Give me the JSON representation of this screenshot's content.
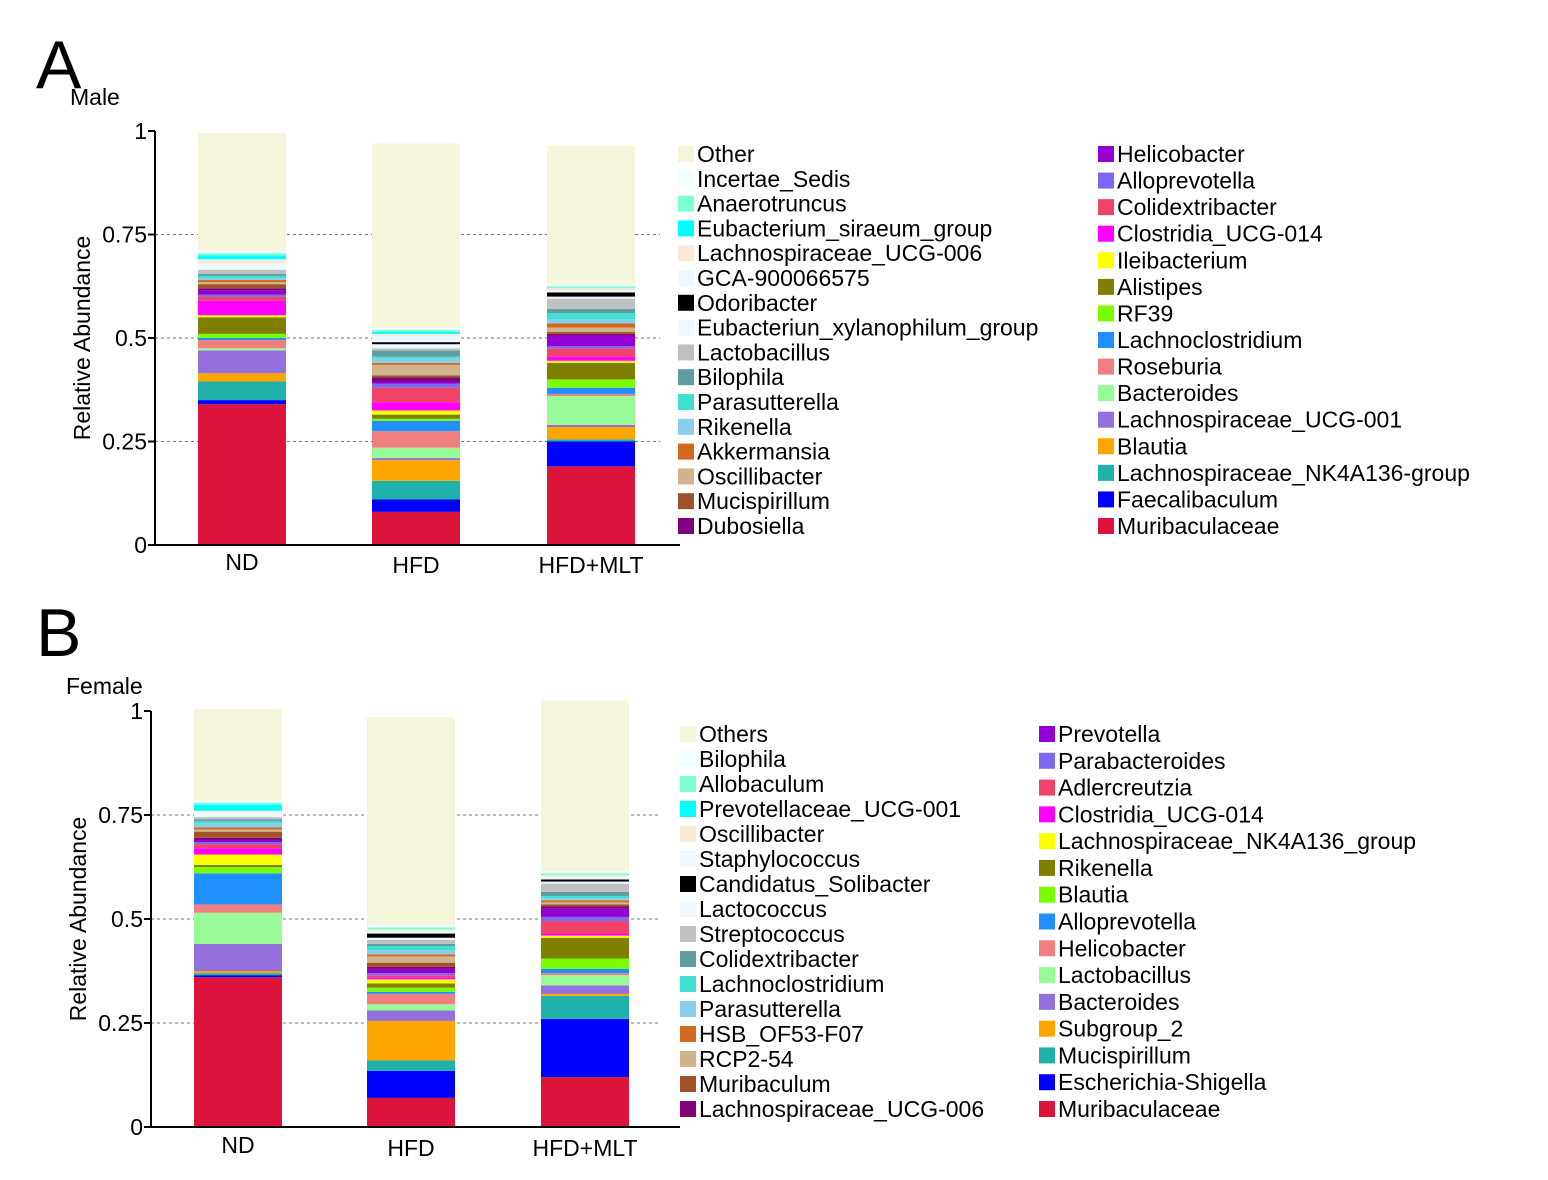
{
  "chart_data": [
    {
      "type": "bar",
      "stacked": true,
      "panel_label": "A",
      "title": "Male",
      "ylabel": "Relative Abundance",
      "xlabel": "",
      "ylim": [
        0,
        1
      ],
      "yticks": [
        0,
        0.25,
        0.5,
        0.75,
        1
      ],
      "ytick_labels": [
        "0",
        "0.25",
        "0.5",
        "0.75",
        "1"
      ],
      "categories": [
        "ND",
        "HFD",
        "HFD+MLT"
      ],
      "series": [
        {
          "name": "Muribaculaceae",
          "color": "#dc143c",
          "values": [
            0.34,
            0.08,
            0.19
          ]
        },
        {
          "name": "Faecalibaculum",
          "color": "#0000ff",
          "values": [
            0.01,
            0.03,
            0.06
          ]
        },
        {
          "name": "Lachnospiraceae_NK4A136-group",
          "color": "#20b2aa",
          "values": [
            0.045,
            0.045,
            0.005
          ]
        },
        {
          "name": "Blautia",
          "color": "#ffa500",
          "values": [
            0.02,
            0.05,
            0.03
          ]
        },
        {
          "name": "Lachnospiraceae_UCG-001",
          "color": "#9370db",
          "values": [
            0.055,
            0.005,
            0.005
          ]
        },
        {
          "name": "Bacteroides",
          "color": "#98fb98",
          "values": [
            0.005,
            0.025,
            0.07
          ]
        },
        {
          "name": "Roseburia",
          "color": "#f08080",
          "values": [
            0.02,
            0.04,
            0.005
          ]
        },
        {
          "name": "Lachnoclostridium",
          "color": "#1e90ff",
          "values": [
            0.005,
            0.025,
            0.015
          ]
        },
        {
          "name": "RF39",
          "color": "#7cfc00",
          "values": [
            0.01,
            0.005,
            0.02
          ]
        },
        {
          "name": "Alistipes",
          "color": "#808000",
          "values": [
            0.04,
            0.01,
            0.04
          ]
        },
        {
          "name": "Ileibacterium",
          "color": "#ffff00",
          "values": [
            0.005,
            0.01,
            0.005
          ]
        },
        {
          "name": "Clostridia_UCG-014",
          "color": "#ff00ff",
          "values": [
            0.035,
            0.02,
            0.01
          ]
        },
        {
          "name": "Colidextribacter",
          "color": "#f0436a",
          "values": [
            0.01,
            0.035,
            0.02
          ]
        },
        {
          "name": "Alloprevotella",
          "color": "#7b68ee",
          "values": [
            0.005,
            0.01,
            0.005
          ]
        },
        {
          "name": "Helicobacter",
          "color": "#9400d3",
          "values": [
            0.01,
            0.005,
            0.025
          ]
        },
        {
          "name": "Dubosiella",
          "color": "#800080",
          "values": [
            0.005,
            0.01,
            0.005
          ]
        },
        {
          "name": "Mucispirillum",
          "color": "#a0522d",
          "values": [
            0.01,
            0.005,
            0.005
          ]
        },
        {
          "name": "Oscillibacter",
          "color": "#d2b48c",
          "values": [
            0.005,
            0.025,
            0.01
          ]
        },
        {
          "name": "Akkermansia",
          "color": "#d2691e",
          "values": [
            0.005,
            0.005,
            0.01
          ]
        },
        {
          "name": "Rikenella",
          "color": "#87ceeb",
          "values": [
            0.005,
            0.01,
            0.01
          ]
        },
        {
          "name": "Parasutterella",
          "color": "#40e0d0",
          "values": [
            0.005,
            0.005,
            0.015
          ]
        },
        {
          "name": "Bilophila",
          "color": "#5f9ea0",
          "values": [
            0.005,
            0.015,
            0.01
          ]
        },
        {
          "name": "Lactobacillus",
          "color": "#c0c0c0",
          "values": [
            0.01,
            0.005,
            0.025
          ]
        },
        {
          "name": "Eubacteriun_xylanophilum_group",
          "color": "#f0f8ff",
          "values": [
            0.005,
            0.01,
            0.005
          ]
        },
        {
          "name": "Odoribacter",
          "color": "#000000",
          "values": [
            0.0,
            0.005,
            0.01
          ]
        },
        {
          "name": "GCA-900066575",
          "color": "#f0f8ff",
          "values": [
            0.01,
            0.015,
            0.005
          ]
        },
        {
          "name": "Lachnospiraceae_UCG-006",
          "color": "#faebd7",
          "values": [
            0.01,
            0.005,
            0.005
          ]
        },
        {
          "name": "Eubacterium_siraeum_group",
          "color": "#00ffff",
          "values": [
            0.01,
            0.005,
            0.0
          ]
        },
        {
          "name": "Anaerotruncus",
          "color": "#7fffd4",
          "values": [
            0.005,
            0.005,
            0.005
          ]
        },
        {
          "name": "Incertae_Sedis",
          "color": "#f0ffff",
          "values": [
            0.005,
            0.005,
            0.005
          ]
        },
        {
          "name": "Other",
          "color": "#f5f5dc",
          "values": [
            0.285,
            0.445,
            0.335
          ]
        }
      ]
    },
    {
      "type": "bar",
      "stacked": true,
      "panel_label": "B",
      "title": "Female",
      "ylabel": "Relative Abundance",
      "xlabel": "",
      "ylim": [
        0,
        1
      ],
      "yticks": [
        0,
        0.25,
        0.5,
        0.75,
        1
      ],
      "ytick_labels": [
        "0",
        "0.25",
        "0.5",
        "0.75",
        "1"
      ],
      "categories": [
        "ND",
        "HFD",
        "HFD+MLT"
      ],
      "series": [
        {
          "name": "Muribaculaceae",
          "color": "#dc143c",
          "values": [
            0.36,
            0.07,
            0.12
          ]
        },
        {
          "name": "Escherichia-Shigella",
          "color": "#0000ff",
          "values": [
            0.005,
            0.065,
            0.14
          ]
        },
        {
          "name": "Mucispirillum",
          "color": "#20b2aa",
          "values": [
            0.005,
            0.025,
            0.055
          ]
        },
        {
          "name": "Subgroup_2",
          "color": "#ffa500",
          "values": [
            0.005,
            0.095,
            0.005
          ]
        },
        {
          "name": "Bacteroides",
          "color": "#9370db",
          "values": [
            0.065,
            0.025,
            0.02
          ]
        },
        {
          "name": "Lactobacillus",
          "color": "#98fb98",
          "values": [
            0.075,
            0.015,
            0.025
          ]
        },
        {
          "name": "Helicobacter",
          "color": "#f08080",
          "values": [
            0.02,
            0.025,
            0.005
          ]
        },
        {
          "name": "Alloprevotella",
          "color": "#1e90ff",
          "values": [
            0.075,
            0.005,
            0.01
          ]
        },
        {
          "name": "Blautia",
          "color": "#7cfc00",
          "values": [
            0.015,
            0.01,
            0.025
          ]
        },
        {
          "name": "Rikenella",
          "color": "#808000",
          "values": [
            0.005,
            0.01,
            0.05
          ]
        },
        {
          "name": "Lachnospiraceae_NK4A136_group",
          "color": "#ffff00",
          "values": [
            0.025,
            0.01,
            0.005
          ]
        },
        {
          "name": "Clostridia_UCG-014",
          "color": "#ff00ff",
          "values": [
            0.015,
            0.005,
            0.005
          ]
        },
        {
          "name": "Adlercreutzia",
          "color": "#f0436a",
          "values": [
            0.01,
            0.005,
            0.03
          ]
        },
        {
          "name": "Parabacteroides",
          "color": "#7b68ee",
          "values": [
            0.005,
            0.005,
            0.01
          ]
        },
        {
          "name": "Prevotella",
          "color": "#9400d3",
          "values": [
            0.005,
            0.01,
            0.02
          ]
        },
        {
          "name": "Lachnospiraceae_UCG-006",
          "color": "#800080",
          "values": [
            0.005,
            0.005,
            0.005
          ]
        },
        {
          "name": "Muribaculum",
          "color": "#a0522d",
          "values": [
            0.015,
            0.01,
            0.005
          ]
        },
        {
          "name": "RCP2-54",
          "color": "#d2b48c",
          "values": [
            0.005,
            0.015,
            0.005
          ]
        },
        {
          "name": "HSB_OF53-F07",
          "color": "#d2691e",
          "values": [
            0.005,
            0.005,
            0.005
          ]
        },
        {
          "name": "Parasutterella",
          "color": "#87ceeb",
          "values": [
            0.01,
            0.01,
            0.005
          ]
        },
        {
          "name": "Lachnoclostridium",
          "color": "#40e0d0",
          "values": [
            0.005,
            0.01,
            0.005
          ]
        },
        {
          "name": "Colidextribacter",
          "color": "#5f9ea0",
          "values": [
            0.005,
            0.005,
            0.01
          ]
        },
        {
          "name": "Streptococcus",
          "color": "#c0c0c0",
          "values": [
            0.005,
            0.01,
            0.02
          ]
        },
        {
          "name": "Lactococcus",
          "color": "#f0f8ff",
          "values": [
            0.005,
            0.005,
            0.005
          ]
        },
        {
          "name": "Candidatus_Solibacter",
          "color": "#000000",
          "values": [
            0.0,
            0.01,
            0.005
          ]
        },
        {
          "name": "Staphylococcus",
          "color": "#f0f8ff",
          "values": [
            0.005,
            0.005,
            0.005
          ]
        },
        {
          "name": "Oscillibacter",
          "color": "#faebd7",
          "values": [
            0.005,
            0.005,
            0.005
          ]
        },
        {
          "name": "Prevotellaceae_UCG-001",
          "color": "#00ffff",
          "values": [
            0.015,
            0.0,
            0.0
          ]
        },
        {
          "name": "Allobaculum",
          "color": "#7fffd4",
          "values": [
            0.005,
            0.005,
            0.005
          ]
        },
        {
          "name": "Bilophila",
          "color": "#f0ffff",
          "values": [
            0.005,
            0.005,
            0.005
          ]
        },
        {
          "name": "Others",
          "color": "#f5f5dc",
          "values": [
            0.22,
            0.5,
            0.41
          ]
        }
      ]
    }
  ]
}
